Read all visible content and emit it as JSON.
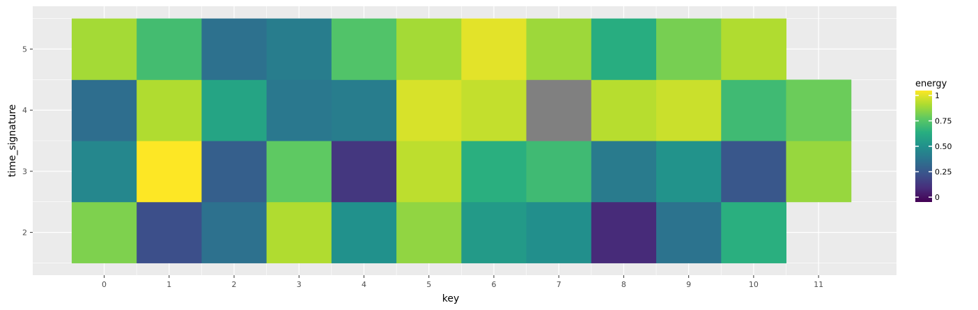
{
  "chart_data": {
    "type": "heatmap",
    "xlabel": "key",
    "ylabel": "time_signature",
    "x": [
      0,
      1,
      2,
      3,
      4,
      5,
      6,
      7,
      8,
      9,
      10,
      11
    ],
    "y": [
      2,
      3,
      4,
      5
    ],
    "xlim": [
      -1.1,
      12.2
    ],
    "ylim": [
      1.3,
      5.7
    ],
    "fill_label": "energy",
    "fill_range": [
      0,
      1
    ],
    "legend_ticks": [
      0,
      0.25,
      0.5,
      0.75,
      1
    ],
    "legend_tick_labels": [
      "0",
      "0.25",
      "0.50",
      "0.75",
      "1"
    ],
    "legend_position": "right",
    "grid": true,
    "colormap": "viridis",
    "na_color": "#808080",
    "cells": [
      {
        "x": 0,
        "y": 2,
        "value": 0.8
      },
      {
        "x": 1,
        "y": 2,
        "value": 0.24
      },
      {
        "x": 2,
        "y": 2,
        "value": 0.37
      },
      {
        "x": 3,
        "y": 2,
        "value": 0.88
      },
      {
        "x": 4,
        "y": 2,
        "value": 0.5
      },
      {
        "x": 5,
        "y": 2,
        "value": 0.83
      },
      {
        "x": 6,
        "y": 2,
        "value": 0.54
      },
      {
        "x": 7,
        "y": 2,
        "value": 0.49
      },
      {
        "x": 8,
        "y": 2,
        "value": 0.12
      },
      {
        "x": 9,
        "y": 2,
        "value": 0.38
      },
      {
        "x": 10,
        "y": 2,
        "value": 0.63
      },
      {
        "x": 0,
        "y": 3,
        "value": 0.46
      },
      {
        "x": 1,
        "y": 3,
        "value": 1.0
      },
      {
        "x": 2,
        "y": 3,
        "value": 0.3
      },
      {
        "x": 3,
        "y": 3,
        "value": 0.75
      },
      {
        "x": 4,
        "y": 3,
        "value": 0.16
      },
      {
        "x": 5,
        "y": 3,
        "value": 0.9
      },
      {
        "x": 6,
        "y": 3,
        "value": 0.63
      },
      {
        "x": 7,
        "y": 3,
        "value": 0.68
      },
      {
        "x": 8,
        "y": 3,
        "value": 0.41
      },
      {
        "x": 9,
        "y": 3,
        "value": 0.51
      },
      {
        "x": 10,
        "y": 3,
        "value": 0.27
      },
      {
        "x": 11,
        "y": 3,
        "value": 0.84
      },
      {
        "x": 0,
        "y": 4,
        "value": 0.36
      },
      {
        "x": 1,
        "y": 4,
        "value": 0.88
      },
      {
        "x": 2,
        "y": 4,
        "value": 0.58
      },
      {
        "x": 3,
        "y": 4,
        "value": 0.4
      },
      {
        "x": 4,
        "y": 4,
        "value": 0.42
      },
      {
        "x": 5,
        "y": 4,
        "value": 0.94
      },
      {
        "x": 6,
        "y": 4,
        "value": 0.91
      },
      {
        "x": 7,
        "y": 4,
        "value": null
      },
      {
        "x": 8,
        "y": 4,
        "value": 0.89
      },
      {
        "x": 9,
        "y": 4,
        "value": 0.92
      },
      {
        "x": 10,
        "y": 4,
        "value": 0.68
      },
      {
        "x": 11,
        "y": 4,
        "value": 0.77
      },
      {
        "x": 0,
        "y": 5,
        "value": 0.86
      },
      {
        "x": 1,
        "y": 5,
        "value": 0.69
      },
      {
        "x": 2,
        "y": 5,
        "value": 0.37
      },
      {
        "x": 3,
        "y": 5,
        "value": 0.42
      },
      {
        "x": 4,
        "y": 5,
        "value": 0.72
      },
      {
        "x": 5,
        "y": 5,
        "value": 0.86
      },
      {
        "x": 6,
        "y": 5,
        "value": 0.96
      },
      {
        "x": 7,
        "y": 5,
        "value": 0.85
      },
      {
        "x": 8,
        "y": 5,
        "value": 0.62
      },
      {
        "x": 9,
        "y": 5,
        "value": 0.79
      },
      {
        "x": 10,
        "y": 5,
        "value": 0.88
      }
    ]
  }
}
